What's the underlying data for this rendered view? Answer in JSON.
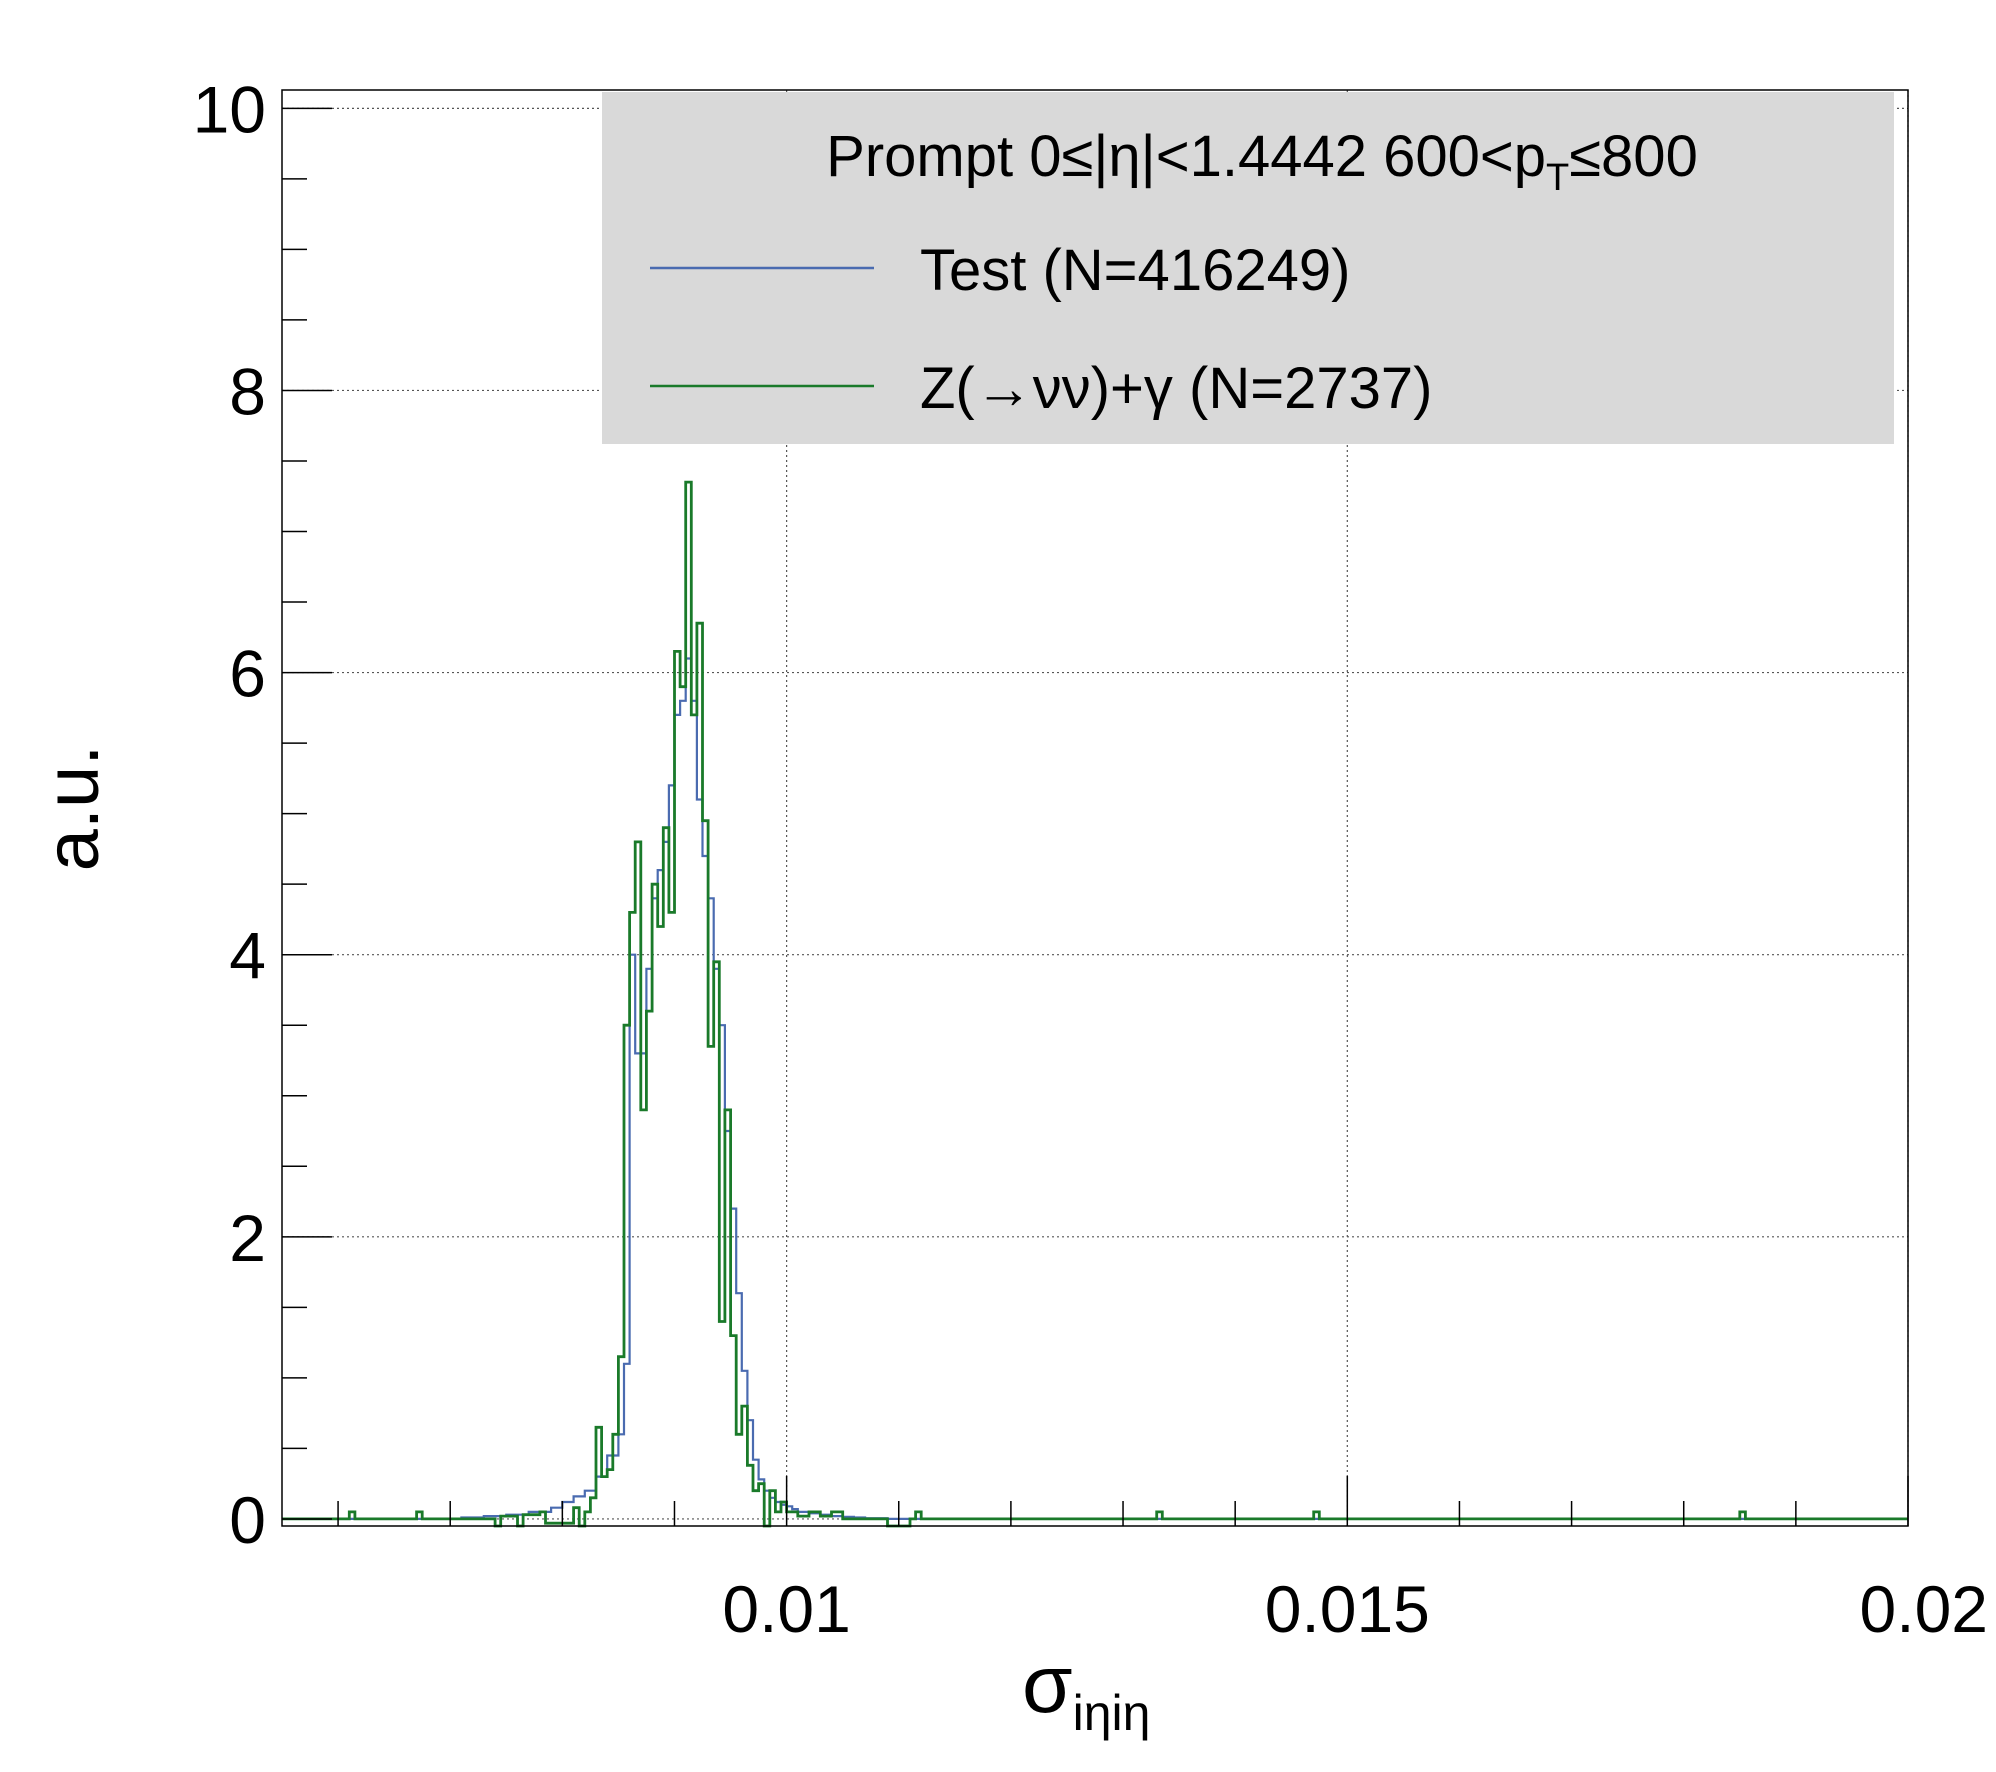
{
  "chart_data": {
    "type": "line",
    "title": "",
    "legend": {
      "header": "Prompt  0≤|η|<1.4442  600<p",
      "header_sub": "T",
      "header_tail": "≤800",
      "placement": "top-right",
      "background": "#d9d9d9"
    },
    "xlabel": "σ",
    "xlabel_sub": "iηiη",
    "ylabel": "a.u.",
    "xlim": [
      0.0055,
      0.02
    ],
    "ylim": [
      -0.05,
      10.13
    ],
    "x_ticks": [
      0.01,
      0.015,
      0.02
    ],
    "x_tick_labels": [
      "0.01",
      "0.015",
      "0.02"
    ],
    "y_ticks": [
      0,
      2,
      4,
      6,
      8,
      10
    ],
    "y_tick_labels": [
      "0",
      "2",
      "4",
      "6",
      "8",
      "10"
    ],
    "grid": true,
    "series": [
      {
        "name": "Test (N=416249)",
        "color": "#4a6bb0",
        "x": [
          0.0055,
          0.0071,
          0.0073,
          0.0075,
          0.0077,
          0.0079,
          0.008,
          0.0081,
          0.0082,
          0.0083,
          0.0084,
          0.0085,
          0.00855,
          0.0086,
          0.00865,
          0.0087,
          0.00875,
          0.0088,
          0.00885,
          0.0089,
          0.00895,
          0.009,
          0.00905,
          0.0091,
          0.00915,
          0.0092,
          0.00925,
          0.0093,
          0.00935,
          0.0094,
          0.00945,
          0.0095,
          0.00955,
          0.0096,
          0.00965,
          0.0097,
          0.00975,
          0.0098,
          0.00985,
          0.0099,
          0.00995,
          0.01,
          0.01005,
          0.0101,
          0.0102,
          0.0103,
          0.0104,
          0.0105,
          0.0106,
          0.0107,
          0.0109,
          0.02
        ],
        "y": [
          0,
          0.01,
          0.02,
          0.03,
          0.05,
          0.08,
          0.12,
          0.16,
          0.2,
          0.3,
          0.45,
          0.6,
          1.1,
          4.0,
          3.3,
          3.3,
          3.9,
          4.4,
          4.6,
          4.8,
          5.2,
          5.7,
          5.8,
          6.1,
          5.8,
          5.1,
          4.7,
          4.4,
          3.9,
          3.5,
          2.75,
          2.2,
          1.6,
          1.05,
          0.7,
          0.42,
          0.28,
          0.2,
          0.15,
          0.12,
          0.1,
          0.09,
          0.07,
          0.05,
          0.04,
          0.03,
          0.02,
          0.015,
          0.01,
          0.005,
          0,
          0
        ]
      },
      {
        "name": "Z(→νν)+γ (N=2737)",
        "color": "#1a7a2a",
        "x": [
          0.0055,
          0.0061,
          0.00615,
          0.0067,
          0.00675,
          0.0074,
          0.00745,
          0.0076,
          0.00765,
          0.0078,
          0.00785,
          0.0081,
          0.00815,
          0.0082,
          0.00825,
          0.0083,
          0.00835,
          0.0084,
          0.00845,
          0.0085,
          0.00855,
          0.0086,
          0.00865,
          0.0087,
          0.00875,
          0.0088,
          0.00885,
          0.0089,
          0.00895,
          0.009,
          0.00905,
          0.0091,
          0.00915,
          0.0092,
          0.00925,
          0.0093,
          0.00935,
          0.0094,
          0.00945,
          0.0095,
          0.00955,
          0.0096,
          0.00965,
          0.0097,
          0.00975,
          0.0098,
          0.00985,
          0.0099,
          0.00995,
          0.01,
          0.01005,
          0.0101,
          0.0102,
          0.0103,
          0.0104,
          0.0105,
          0.0106,
          0.0109,
          0.0111,
          0.01115,
          0.0112,
          0.01125,
          0.0133,
          0.01335,
          0.0147,
          0.01475,
          0.0185,
          0.01855,
          0.02
        ],
        "y": [
          0,
          0.05,
          0,
          0.05,
          0,
          -0.05,
          0.02,
          -0.05,
          0.03,
          0.05,
          -0.03,
          0.08,
          -0.05,
          0.05,
          0.15,
          0.65,
          0.3,
          0.35,
          0.6,
          1.15,
          3.5,
          4.3,
          4.8,
          2.9,
          3.6,
          4.5,
          4.2,
          4.9,
          4.3,
          6.15,
          5.9,
          7.35,
          5.7,
          6.35,
          4.95,
          3.35,
          3.95,
          1.4,
          2.9,
          1.3,
          0.6,
          0.8,
          0.38,
          0.2,
          0.25,
          -0.05,
          0.2,
          0.05,
          0.12,
          0.05,
          0.05,
          0.02,
          0.05,
          0.02,
          0.05,
          0,
          0,
          -0.05,
          0,
          0.05,
          0,
          0,
          0.05,
          0,
          0.05,
          0,
          0.05,
          0,
          0
        ]
      }
    ]
  }
}
